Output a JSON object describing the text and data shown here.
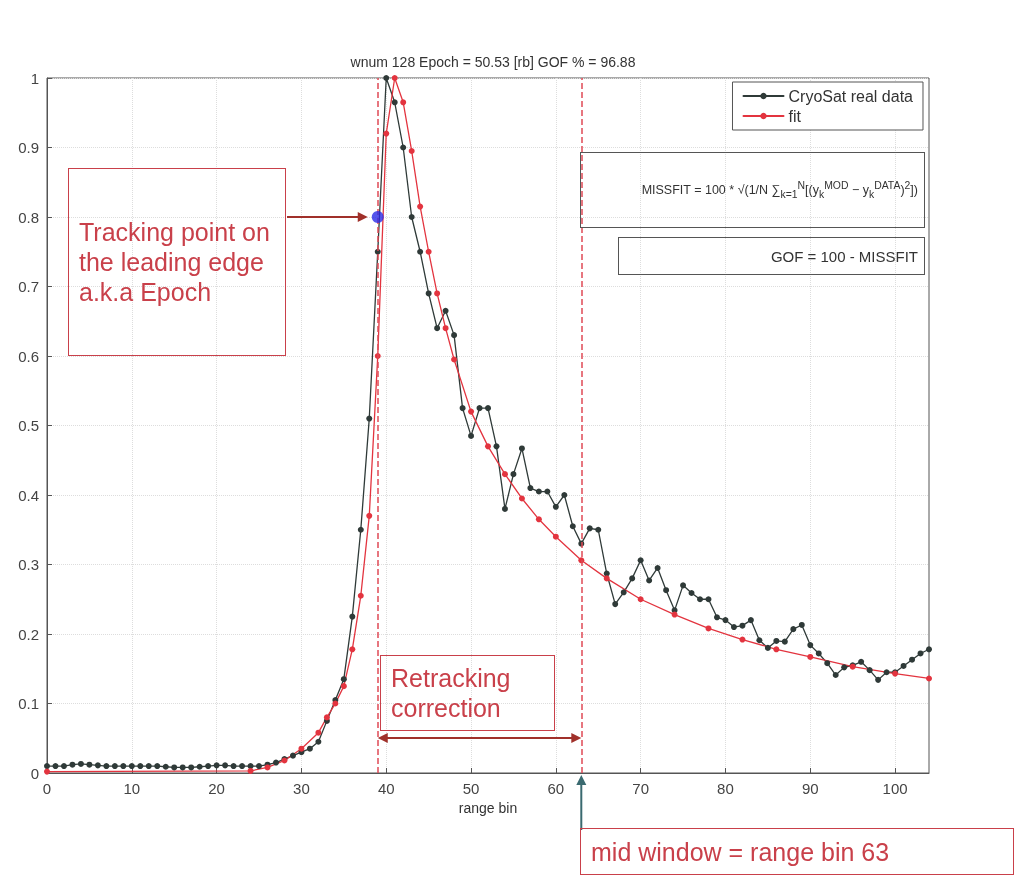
{
  "chart_data": {
    "type": "line",
    "title": "wnum 128 Epoch = 50.53 [rb] GOF % = 96.88",
    "xlabel": "range bin",
    "xlim": [
      0,
      104
    ],
    "xticks": [
      0,
      10,
      20,
      30,
      40,
      50,
      60,
      70,
      80,
      90,
      100
    ],
    "ylim": [
      0,
      1
    ],
    "yticks": [
      0,
      0.1,
      0.2,
      0.3,
      0.4,
      0.5,
      0.6,
      0.7,
      0.8,
      0.9,
      1
    ],
    "grid": true,
    "legend": "top right",
    "marker": "circle",
    "line_style": "solid",
    "series": [
      {
        "name": "CryoSat real data",
        "color": "#2f3a38",
        "x": [
          0,
          1,
          2,
          3,
          4,
          5,
          6,
          7,
          8,
          9,
          10,
          11,
          12,
          13,
          14,
          15,
          16,
          17,
          18,
          19,
          20,
          21,
          22,
          23,
          24,
          25,
          26,
          27,
          28,
          29,
          30,
          31,
          32,
          33,
          34,
          35,
          36,
          37,
          38,
          39,
          40,
          41,
          42,
          43,
          44,
          45,
          46,
          47,
          48,
          49,
          50,
          51,
          52,
          53,
          54,
          55,
          56,
          57,
          58,
          59,
          60,
          61,
          62,
          63,
          64,
          65,
          66,
          67,
          68,
          69,
          70,
          71,
          72,
          73,
          74,
          75,
          76,
          77,
          78,
          79,
          80,
          81,
          82,
          83,
          84,
          85,
          86,
          87,
          88,
          89,
          90,
          91,
          92,
          93,
          94,
          95,
          96,
          97,
          98,
          99,
          100,
          101,
          102,
          103,
          104
        ],
        "values": [
          0.01,
          0.01,
          0.01,
          0.012,
          0.013,
          0.012,
          0.011,
          0.01,
          0.01,
          0.01,
          0.01,
          0.01,
          0.01,
          0.01,
          0.009,
          0.008,
          0.008,
          0.008,
          0.009,
          0.01,
          0.011,
          0.011,
          0.01,
          0.01,
          0.01,
          0.01,
          0.012,
          0.015,
          0.02,
          0.025,
          0.03,
          0.035,
          0.045,
          0.075,
          0.105,
          0.135,
          0.225,
          0.35,
          0.51,
          0.75,
          1.0,
          0.965,
          0.9,
          0.8,
          0.75,
          0.69,
          0.64,
          0.665,
          0.63,
          0.525,
          0.485,
          0.525,
          0.525,
          0.47,
          0.38,
          0.43,
          0.467,
          0.41,
          0.405,
          0.405,
          0.383,
          0.4,
          0.355,
          0.33,
          0.352,
          0.35,
          0.287,
          0.243,
          0.26,
          0.28,
          0.306,
          0.277,
          0.295,
          0.263,
          0.234,
          0.27,
          0.259,
          0.25,
          0.25,
          0.224,
          0.22,
          0.21,
          0.212,
          0.22,
          0.191,
          0.18,
          0.19,
          0.189,
          0.207,
          0.213,
          0.184,
          0.172,
          0.158,
          0.141,
          0.152,
          0.155,
          0.16,
          0.148,
          0.134,
          0.145,
          0.145,
          0.154,
          0.163,
          0.172,
          0.178
        ]
      },
      {
        "name": "fit",
        "color": "#e3343f",
        "x": [
          0,
          24,
          26,
          28,
          30,
          32,
          33,
          34,
          35,
          36,
          37,
          38,
          39,
          40,
          41,
          42,
          43,
          44,
          45,
          46,
          47,
          48,
          50,
          52,
          54,
          56,
          58,
          60,
          63,
          66,
          70,
          74,
          78,
          82,
          86,
          90,
          95,
          100,
          104
        ],
        "values": [
          0.002,
          0.003,
          0.008,
          0.018,
          0.035,
          0.058,
          0.08,
          0.1,
          0.125,
          0.178,
          0.255,
          0.37,
          0.6,
          0.92,
          1.0,
          0.965,
          0.895,
          0.815,
          0.75,
          0.69,
          0.64,
          0.595,
          0.52,
          0.47,
          0.43,
          0.395,
          0.365,
          0.34,
          0.306,
          0.28,
          0.25,
          0.228,
          0.208,
          0.192,
          0.178,
          0.167,
          0.153,
          0.143,
          0.136
        ]
      },
      {
        "type": "scatter",
        "color": "#2a2ae6",
        "x": [
          39
        ],
        "values": [
          0.8
        ]
      }
    ],
    "ref_lines": [
      {
        "axis": "x",
        "value": 39,
        "color": "#e04a55",
        "line_style": "dashed"
      },
      {
        "axis": "x",
        "value": 63,
        "color": "#e04a55",
        "line_style": "dashed"
      }
    ],
    "annotations": [
      "Tracking point on the leading edge a.k.a Epoch",
      "Retracking correction",
      "mid window = range bin 63",
      "MISSFIT = 100 * √(1/N ∑$_{k=1}$$^{N}$[(y$_{k}$$^{MOD}$ − y$_{k}$$^{DATA}$)$^{2}$])",
      "GOF = 100 - MISSFIT"
    ]
  }
}
